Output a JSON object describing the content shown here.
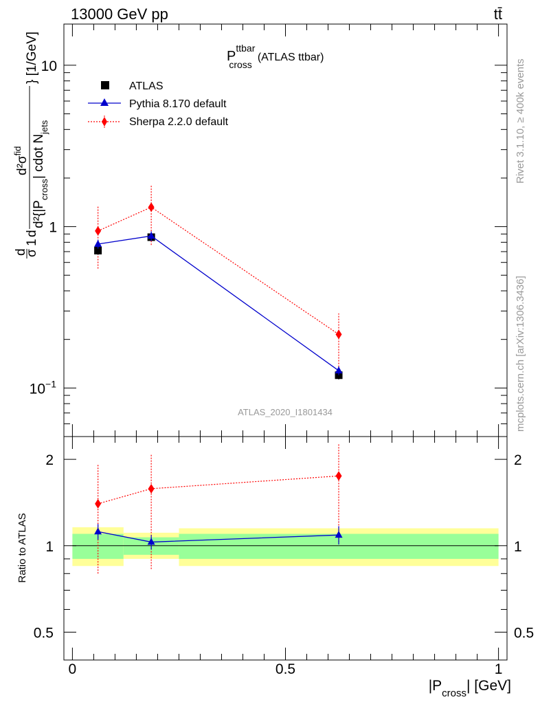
{
  "header": {
    "energy": "13000 GeV pp",
    "process": "tt̄"
  },
  "side_text": {
    "rivet": "Rivet 3.1.10, ≥ 400k events",
    "site": "mcplots.cern.ch [arXiv:1306.3436]"
  },
  "colors": {
    "atlas": "#000000",
    "pythia": "#0000cc",
    "sherpa": "#ff0000",
    "band_inner": "#99ff99",
    "band_outer": "#ffff99",
    "analysis_text": "#999999"
  },
  "chart_data": [
    {
      "type": "scatter",
      "panel": "main",
      "title_main": "P",
      "title_sup": "ttbar",
      "title_sub": "cross",
      "title_suffix": "(ATLAS ttbar)",
      "analysis_id": "ATLAS_2020_I1801434",
      "yscale": "log",
      "ylim": [
        0.05,
        18
      ],
      "xlim": [
        -0.02,
        1.02
      ],
      "y_ticks": [
        {
          "value": 0.1,
          "base": "10",
          "exp": "−1"
        },
        {
          "value": 1,
          "base": "1",
          "exp": ""
        },
        {
          "value": 10,
          "base": "10",
          "exp": ""
        }
      ],
      "ylabel": {
        "frac1_num": "d",
        "frac1_den": "σ",
        "one": "1",
        "d": "d",
        "frac2_num": "d²σ",
        "frac2_num_sup": "fid",
        "frac2_den_pre": "d²{|P",
        "frac2_den_sub": "cross",
        "frac2_den_post": "| cdot N",
        "frac2_den_sub2": "jets",
        "units": "} [1/GeV]"
      },
      "legend": [
        "ATLAS",
        "Pythia 8.170 default",
        "Sherpa 2.2.0 default"
      ],
      "series": [
        {
          "name": "ATLAS",
          "x": [
            0.06,
            0.185,
            0.625
          ],
          "y": [
            0.71,
            0.86,
            0.12
          ],
          "yerr_lo": [
            0.04,
            0.04,
            0.007
          ],
          "yerr_hi": [
            0.04,
            0.04,
            0.007
          ]
        },
        {
          "name": "Pythia 8.170 default",
          "x": [
            0.06,
            0.185,
            0.625
          ],
          "y": [
            0.78,
            0.875,
            0.128
          ],
          "yerr_lo": [
            0.05,
            0.06,
            0.008
          ],
          "yerr_hi": [
            0.05,
            0.06,
            0.008
          ]
        },
        {
          "name": "Sherpa 2.2.0 default",
          "x": [
            0.06,
            0.185,
            0.625
          ],
          "y": [
            0.94,
            1.32,
            0.215
          ],
          "yerr_lo": [
            0.39,
            0.55,
            0.085
          ],
          "yerr_hi": [
            0.39,
            0.5,
            0.075
          ]
        }
      ]
    },
    {
      "type": "scatter",
      "panel": "ratio",
      "ylabel": "Ratio to ATLAS",
      "xlabel_pre": "|P",
      "xlabel_sub": "cross",
      "xlabel_post": "| [GeV]",
      "yscale": "log",
      "ylim": [
        0.4,
        2.4
      ],
      "xlim": [
        -0.02,
        1.02
      ],
      "x_ticks": [
        {
          "value": 0,
          "label": "0"
        },
        {
          "value": 0.5,
          "label": "0.5"
        },
        {
          "value": 1,
          "label": "1"
        }
      ],
      "y_ticks": [
        {
          "value": 0.5,
          "label": "0.5"
        },
        {
          "value": 1,
          "label": "1"
        },
        {
          "value": 2,
          "label": "2"
        }
      ],
      "bands": [
        {
          "x0": 0.0,
          "x1": 0.12,
          "inner": [
            0.9,
            1.1
          ],
          "outer": [
            0.85,
            1.16
          ]
        },
        {
          "x0": 0.12,
          "x1": 0.25,
          "inner": [
            0.93,
            1.07
          ],
          "outer": [
            0.9,
            1.11
          ]
        },
        {
          "x0": 0.25,
          "x1": 1.0,
          "inner": [
            0.9,
            1.1
          ],
          "outer": [
            0.85,
            1.15
          ]
        }
      ],
      "series": [
        {
          "name": "Pythia 8.170 default",
          "x": [
            0.06,
            0.185,
            0.625
          ],
          "y": [
            1.12,
            1.03,
            1.09
          ],
          "yerr_lo": [
            0.07,
            0.06,
            0.08
          ],
          "yerr_hi": [
            0.07,
            0.06,
            0.08
          ]
        },
        {
          "name": "Sherpa 2.2.0 default",
          "x": [
            0.06,
            0.185,
            0.625
          ],
          "y": [
            1.4,
            1.58,
            1.75
          ],
          "yerr_lo": [
            0.6,
            0.75,
            0.72
          ],
          "yerr_hi": [
            0.52,
            0.5,
            0.52
          ]
        }
      ]
    }
  ]
}
